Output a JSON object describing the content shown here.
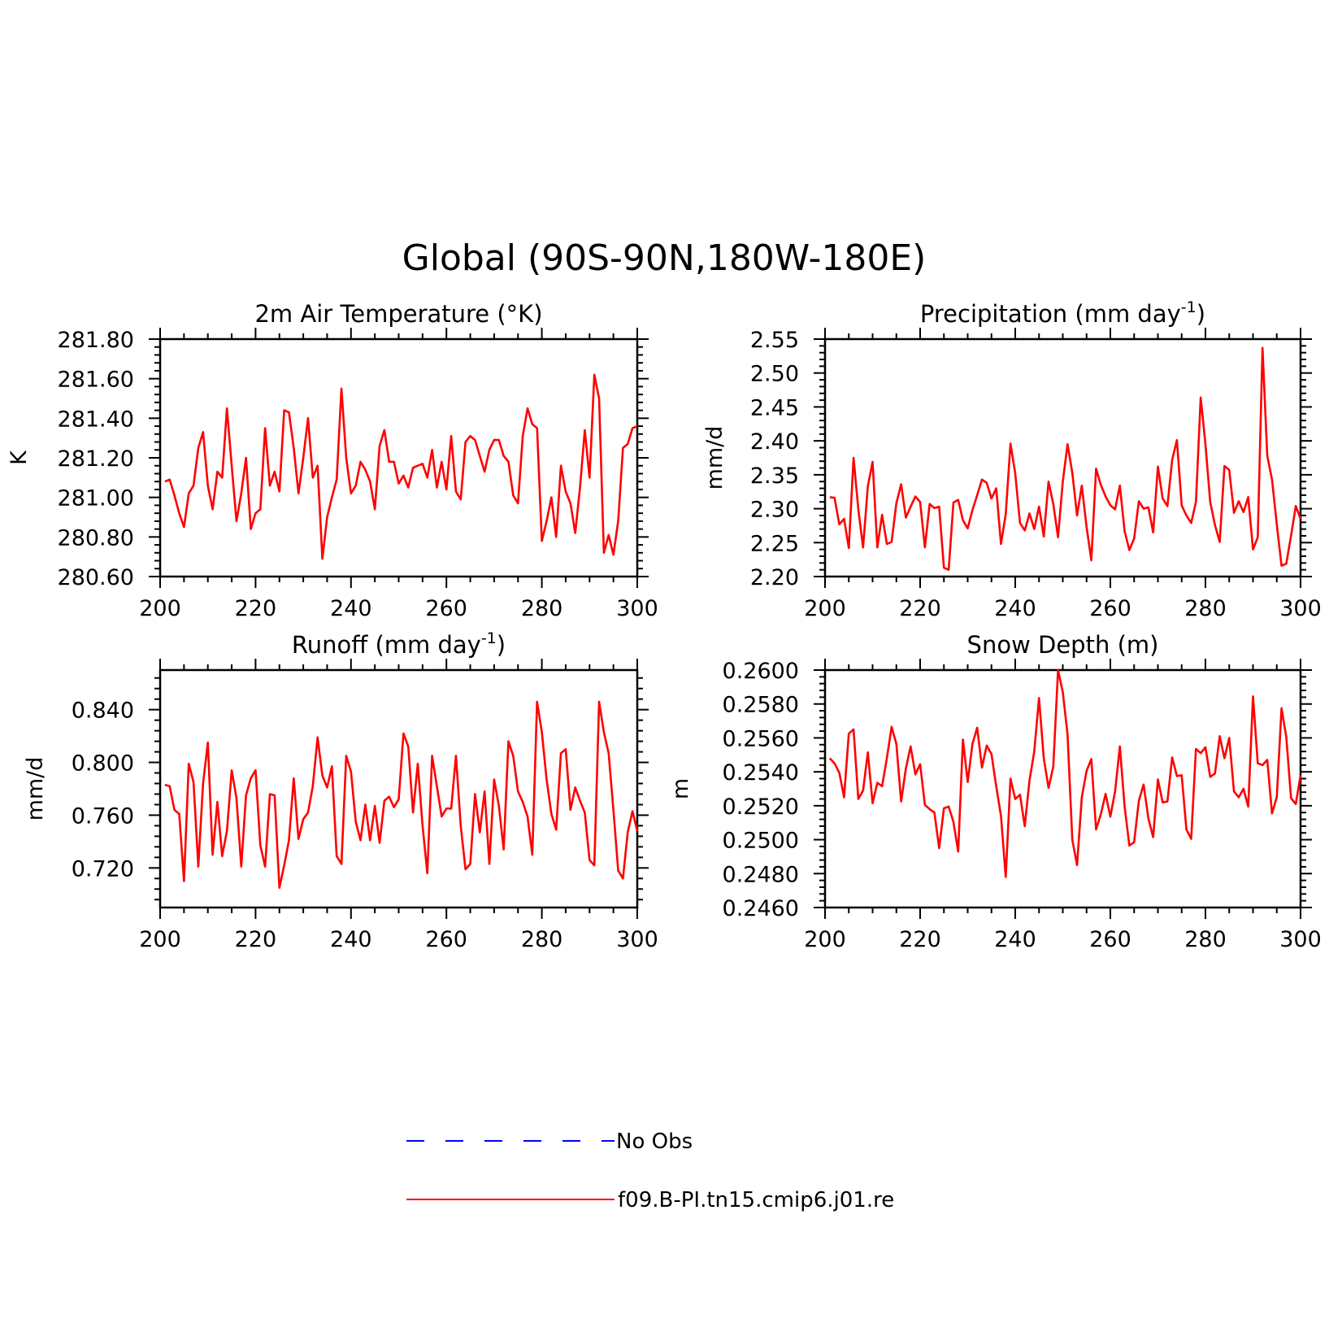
{
  "figure_title": "Global (90S-90N,180W-180E)",
  "colors": {
    "model": "#ff0000",
    "obs": "#0000ff",
    "axes": "#000000"
  },
  "legend": [
    {
      "label": "No Obs",
      "style": "dashed",
      "color": "#0000ff"
    },
    {
      "label": "f09.B-PI.tn15.cmip6.j01.re",
      "style": "solid",
      "color": "#ff0000"
    }
  ],
  "chart_data": [
    {
      "type": "line",
      "title": "2m Air Temperature (°K)",
      "xlabel": "",
      "ylabel": "K",
      "xlim": [
        200,
        300
      ],
      "ylim": [
        280.6,
        281.8
      ],
      "xticks": [
        "200",
        "220",
        "240",
        "260",
        "280",
        "300"
      ],
      "yticks": [
        "280.60",
        "280.80",
        "281.00",
        "281.20",
        "281.40",
        "281.60",
        "281.80"
      ],
      "series": [
        {
          "name": "f09.B-PI.tn15.cmip6.j01.re",
          "x_start": 201,
          "x_step": 1,
          "values": [
            281.08,
            281.09,
            281.01,
            280.92,
            280.85,
            281.02,
            281.06,
            281.25,
            281.33,
            281.06,
            280.94,
            281.13,
            281.1,
            281.45,
            281.16,
            280.88,
            281.02,
            281.2,
            280.84,
            280.92,
            280.94,
            281.35,
            281.06,
            281.13,
            281.03,
            281.44,
            281.43,
            281.25,
            281.02,
            281.2,
            281.4,
            281.1,
            281.16,
            280.69,
            280.9,
            281.0,
            281.09,
            281.55,
            281.2,
            281.02,
            281.06,
            281.18,
            281.14,
            281.08,
            280.94,
            281.26,
            281.34,
            281.18,
            281.18,
            281.07,
            281.11,
            281.05,
            281.15,
            281.16,
            281.17,
            281.1,
            281.24,
            281.05,
            281.18,
            281.04,
            281.31,
            281.03,
            280.99,
            281.28,
            281.31,
            281.29,
            281.21,
            281.13,
            281.24,
            281.29,
            281.29,
            281.21,
            281.18,
            281.01,
            280.97,
            281.31,
            281.45,
            281.37,
            281.35,
            280.78,
            280.88,
            281.0,
            280.8,
            281.16,
            281.03,
            280.97,
            280.82,
            281.05,
            281.34,
            281.1,
            281.62,
            281.5,
            280.72,
            280.81,
            280.71,
            280.88,
            281.25,
            281.27,
            281.35,
            281.36
          ]
        }
      ]
    },
    {
      "type": "line",
      "title": "Precipitation (mm day",
      "title_sup": "-1",
      "title_end": ")",
      "xlabel": "",
      "ylabel": "mm/d",
      "xlim": [
        200,
        300
      ],
      "ylim": [
        2.2,
        2.55
      ],
      "xticks": [
        "200",
        "220",
        "240",
        "260",
        "280",
        "300"
      ],
      "yticks": [
        "2.20",
        "2.25",
        "2.30",
        "2.35",
        "2.40",
        "2.45",
        "2.50",
        "2.55"
      ],
      "series": [
        {
          "name": "f09.B-PI.tn15.cmip6.j01.re",
          "x_start": 201,
          "x_step": 1,
          "values": [
            2.317,
            2.316,
            2.277,
            2.285,
            2.242,
            2.375,
            2.299,
            2.243,
            2.333,
            2.369,
            2.243,
            2.291,
            2.248,
            2.251,
            2.308,
            2.336,
            2.287,
            2.303,
            2.318,
            2.31,
            2.243,
            2.307,
            2.301,
            2.303,
            2.213,
            2.21,
            2.309,
            2.313,
            2.283,
            2.271,
            2.298,
            2.32,
            2.343,
            2.338,
            2.315,
            2.33,
            2.248,
            2.292,
            2.396,
            2.352,
            2.279,
            2.268,
            2.293,
            2.27,
            2.303,
            2.259,
            2.34,
            2.307,
            2.258,
            2.34,
            2.395,
            2.353,
            2.29,
            2.334,
            2.273,
            2.224,
            2.359,
            2.335,
            2.318,
            2.305,
            2.299,
            2.334,
            2.267,
            2.239,
            2.256,
            2.311,
            2.3,
            2.302,
            2.265,
            2.362,
            2.315,
            2.304,
            2.372,
            2.401,
            2.305,
            2.29,
            2.279,
            2.31,
            2.464,
            2.395,
            2.31,
            2.276,
            2.251,
            2.363,
            2.357,
            2.294,
            2.311,
            2.295,
            2.317,
            2.24,
            2.258,
            2.537,
            2.378,
            2.343,
            2.277,
            2.216,
            2.219,
            2.26,
            2.304,
            2.285
          ]
        }
      ]
    },
    {
      "type": "line",
      "title": "Runoff (mm day",
      "title_sup": "-1",
      "title_end": ")",
      "xlabel": "",
      "ylabel": "mm/d",
      "xlim": [
        200,
        300
      ],
      "ylim": [
        0.69,
        0.87
      ],
      "xticks": [
        "200",
        "220",
        "240",
        "260",
        "280",
        "300"
      ],
      "yticks": [
        "0.720",
        "0.760",
        "0.800",
        "0.840"
      ],
      "ytick_values": [
        0.72,
        0.76,
        0.8,
        0.84
      ],
      "series": [
        {
          "name": "f09.B-PI.tn15.cmip6.j01.re",
          "x_start": 201,
          "x_step": 1,
          "values": [
            0.783,
            0.782,
            0.764,
            0.761,
            0.71,
            0.799,
            0.785,
            0.721,
            0.784,
            0.815,
            0.73,
            0.77,
            0.729,
            0.748,
            0.794,
            0.773,
            0.721,
            0.775,
            0.788,
            0.794,
            0.737,
            0.721,
            0.776,
            0.775,
            0.705,
            0.722,
            0.741,
            0.788,
            0.742,
            0.757,
            0.762,
            0.782,
            0.819,
            0.79,
            0.781,
            0.797,
            0.729,
            0.723,
            0.805,
            0.793,
            0.755,
            0.741,
            0.768,
            0.741,
            0.767,
            0.739,
            0.771,
            0.774,
            0.766,
            0.772,
            0.822,
            0.812,
            0.762,
            0.799,
            0.752,
            0.716,
            0.805,
            0.782,
            0.759,
            0.765,
            0.765,
            0.805,
            0.752,
            0.719,
            0.723,
            0.776,
            0.747,
            0.778,
            0.723,
            0.787,
            0.767,
            0.734,
            0.816,
            0.805,
            0.778,
            0.77,
            0.759,
            0.73,
            0.846,
            0.823,
            0.787,
            0.761,
            0.749,
            0.807,
            0.81,
            0.764,
            0.781,
            0.771,
            0.762,
            0.726,
            0.722,
            0.846,
            0.823,
            0.807,
            0.764,
            0.718,
            0.712,
            0.747,
            0.763,
            0.748
          ]
        }
      ]
    },
    {
      "type": "line",
      "title": "Snow Depth (m)",
      "xlabel": "",
      "ylabel": "m",
      "xlim": [
        200,
        300
      ],
      "ylim": [
        0.246,
        0.26
      ],
      "xticks": [
        "200",
        "220",
        "240",
        "260",
        "280",
        "300"
      ],
      "yticks": [
        "0.2460",
        "0.2480",
        "0.2500",
        "0.2520",
        "0.2540",
        "0.2560",
        "0.2580",
        "0.2600"
      ],
      "series": [
        {
          "name": "f09.B-PI.tn15.cmip6.j01.re",
          "x_start": 201,
          "x_step": 1,
          "values": [
            0.2548,
            0.2545,
            0.25395,
            0.2525,
            0.25625,
            0.2565,
            0.2524,
            0.2529,
            0.25515,
            0.25215,
            0.25335,
            0.25315,
            0.2548,
            0.25665,
            0.25565,
            0.25225,
            0.2542,
            0.2555,
            0.25385,
            0.25445,
            0.25205,
            0.2518,
            0.2516,
            0.2495,
            0.25185,
            0.25195,
            0.25105,
            0.2493,
            0.2559,
            0.2534,
            0.25565,
            0.2566,
            0.25425,
            0.25555,
            0.25505,
            0.25315,
            0.2514,
            0.2478,
            0.2536,
            0.2524,
            0.25265,
            0.2508,
            0.2535,
            0.2552,
            0.25835,
            0.2548,
            0.25305,
            0.2543,
            0.26,
            0.2587,
            0.2562,
            0.25,
            0.2485,
            0.2525,
            0.25405,
            0.25475,
            0.2506,
            0.2515,
            0.2527,
            0.25135,
            0.25285,
            0.2555,
            0.25195,
            0.24965,
            0.24985,
            0.2523,
            0.25325,
            0.25125,
            0.25015,
            0.25355,
            0.2522,
            0.25225,
            0.25485,
            0.25375,
            0.2538,
            0.2506,
            0.25005,
            0.25535,
            0.2551,
            0.25545,
            0.2537,
            0.2539,
            0.2561,
            0.2548,
            0.256,
            0.25285,
            0.2525,
            0.253,
            0.25195,
            0.25845,
            0.2545,
            0.2544,
            0.2547,
            0.25155,
            0.2525,
            0.25775,
            0.25605,
            0.25245,
            0.2521,
            0.2538
          ]
        }
      ]
    }
  ]
}
